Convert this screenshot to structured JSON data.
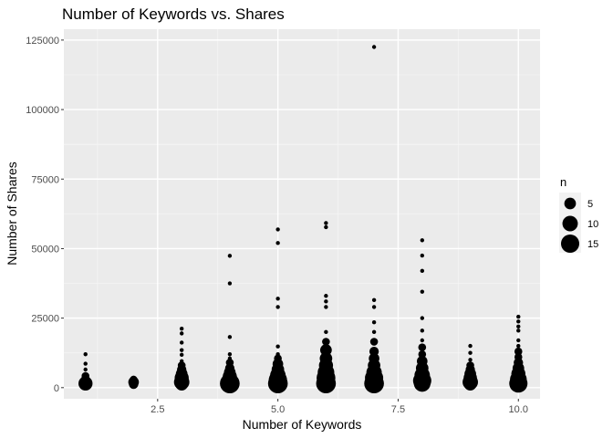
{
  "chart_data": {
    "type": "scatter",
    "title": "Number of Keywords vs. Shares",
    "xlabel": "Number of Keywords",
    "ylabel": "Number of Shares",
    "xlim": [
      0.55,
      10.45
    ],
    "ylim": [
      -4000,
      128900
    ],
    "x_ticks": [
      2.5,
      5.0,
      7.5,
      10.0
    ],
    "x_tick_labels": [
      "2.5",
      "5.0",
      "7.5",
      "10.0"
    ],
    "y_ticks": [
      0,
      25000,
      50000,
      75000,
      100000,
      125000
    ],
    "y_tick_labels": [
      "0",
      "25000",
      "50000",
      "75000",
      "100000",
      "125000"
    ],
    "grid": true,
    "background": "#ebebeb",
    "point_color": "#000000",
    "legend": {
      "title": "n",
      "position": "right",
      "entries": [
        {
          "label": "5",
          "n": 5
        },
        {
          "label": "10",
          "n": 10
        },
        {
          "label": "15",
          "n": 15
        }
      ]
    },
    "points": [
      {
        "x": 1,
        "y": 12000,
        "n": 1
      },
      {
        "x": 1,
        "y": 8600,
        "n": 1
      },
      {
        "x": 1,
        "y": 6500,
        "n": 1
      },
      {
        "x": 1,
        "y": 4200,
        "n": 2
      },
      {
        "x": 1,
        "y": 2800,
        "n": 3
      },
      {
        "x": 1,
        "y": 1500,
        "n": 8
      },
      {
        "x": 1,
        "y": 900,
        "n": 4
      },
      {
        "x": 2,
        "y": 2900,
        "n": 2
      },
      {
        "x": 2,
        "y": 2000,
        "n": 4
      },
      {
        "x": 2,
        "y": 1200,
        "n": 3
      },
      {
        "x": 2,
        "y": 600,
        "n": 1
      },
      {
        "x": 3,
        "y": 21200,
        "n": 1
      },
      {
        "x": 3,
        "y": 19500,
        "n": 1
      },
      {
        "x": 3,
        "y": 16200,
        "n": 1
      },
      {
        "x": 3,
        "y": 13500,
        "n": 1
      },
      {
        "x": 3,
        "y": 11800,
        "n": 1
      },
      {
        "x": 3,
        "y": 9500,
        "n": 1
      },
      {
        "x": 3,
        "y": 8000,
        "n": 2
      },
      {
        "x": 3,
        "y": 6500,
        "n": 3
      },
      {
        "x": 3,
        "y": 5000,
        "n": 5
      },
      {
        "x": 3,
        "y": 3500,
        "n": 8
      },
      {
        "x": 3,
        "y": 2000,
        "n": 10
      },
      {
        "x": 3,
        "y": 1200,
        "n": 6
      },
      {
        "x": 4,
        "y": 47400,
        "n": 1
      },
      {
        "x": 4,
        "y": 37500,
        "n": 1
      },
      {
        "x": 4,
        "y": 18200,
        "n": 1
      },
      {
        "x": 4,
        "y": 12000,
        "n": 1
      },
      {
        "x": 4,
        "y": 10500,
        "n": 1
      },
      {
        "x": 4,
        "y": 9000,
        "n": 2
      },
      {
        "x": 4,
        "y": 7000,
        "n": 3
      },
      {
        "x": 4,
        "y": 5500,
        "n": 5
      },
      {
        "x": 4,
        "y": 4000,
        "n": 8
      },
      {
        "x": 4,
        "y": 2500,
        "n": 12
      },
      {
        "x": 4,
        "y": 1500,
        "n": 18
      },
      {
        "x": 5,
        "y": 56900,
        "n": 1
      },
      {
        "x": 5,
        "y": 52000,
        "n": 1
      },
      {
        "x": 5,
        "y": 32000,
        "n": 1
      },
      {
        "x": 5,
        "y": 29000,
        "n": 1
      },
      {
        "x": 5,
        "y": 14800,
        "n": 1
      },
      {
        "x": 5,
        "y": 12000,
        "n": 1
      },
      {
        "x": 5,
        "y": 10500,
        "n": 2
      },
      {
        "x": 5,
        "y": 8500,
        "n": 4
      },
      {
        "x": 5,
        "y": 6500,
        "n": 6
      },
      {
        "x": 5,
        "y": 4500,
        "n": 10
      },
      {
        "x": 5,
        "y": 2800,
        "n": 15
      },
      {
        "x": 5,
        "y": 1500,
        "n": 18
      },
      {
        "x": 6,
        "y": 59200,
        "n": 1
      },
      {
        "x": 6,
        "y": 57700,
        "n": 1
      },
      {
        "x": 6,
        "y": 33000,
        "n": 1
      },
      {
        "x": 6,
        "y": 31000,
        "n": 1
      },
      {
        "x": 6,
        "y": 29000,
        "n": 1
      },
      {
        "x": 6,
        "y": 20000,
        "n": 1
      },
      {
        "x": 6,
        "y": 16500,
        "n": 2
      },
      {
        "x": 6,
        "y": 13500,
        "n": 5
      },
      {
        "x": 6,
        "y": 10500,
        "n": 6
      },
      {
        "x": 6,
        "y": 8000,
        "n": 8
      },
      {
        "x": 6,
        "y": 5500,
        "n": 12
      },
      {
        "x": 6,
        "y": 3500,
        "n": 16
      },
      {
        "x": 6,
        "y": 1500,
        "n": 18
      },
      {
        "x": 7,
        "y": 122500,
        "n": 1
      },
      {
        "x": 7,
        "y": 31500,
        "n": 1
      },
      {
        "x": 7,
        "y": 29000,
        "n": 1
      },
      {
        "x": 7,
        "y": 23500,
        "n": 1
      },
      {
        "x": 7,
        "y": 20000,
        "n": 1
      },
      {
        "x": 7,
        "y": 16500,
        "n": 2
      },
      {
        "x": 7,
        "y": 13000,
        "n": 3
      },
      {
        "x": 7,
        "y": 10500,
        "n": 4
      },
      {
        "x": 7,
        "y": 8000,
        "n": 6
      },
      {
        "x": 7,
        "y": 5500,
        "n": 10
      },
      {
        "x": 7,
        "y": 3500,
        "n": 15
      },
      {
        "x": 7,
        "y": 1500,
        "n": 18
      },
      {
        "x": 8,
        "y": 53000,
        "n": 1
      },
      {
        "x": 8,
        "y": 47500,
        "n": 1
      },
      {
        "x": 8,
        "y": 42000,
        "n": 1
      },
      {
        "x": 8,
        "y": 34500,
        "n": 1
      },
      {
        "x": 8,
        "y": 25000,
        "n": 1
      },
      {
        "x": 8,
        "y": 20500,
        "n": 1
      },
      {
        "x": 8,
        "y": 17000,
        "n": 1
      },
      {
        "x": 8,
        "y": 14500,
        "n": 2
      },
      {
        "x": 8,
        "y": 12000,
        "n": 2
      },
      {
        "x": 8,
        "y": 9500,
        "n": 4
      },
      {
        "x": 8,
        "y": 7000,
        "n": 6
      },
      {
        "x": 8,
        "y": 4500,
        "n": 10
      },
      {
        "x": 8,
        "y": 2500,
        "n": 15
      },
      {
        "x": 8,
        "y": 1500,
        "n": 12
      },
      {
        "x": 9,
        "y": 15000,
        "n": 1
      },
      {
        "x": 9,
        "y": 12500,
        "n": 1
      },
      {
        "x": 9,
        "y": 10000,
        "n": 1
      },
      {
        "x": 9,
        "y": 8000,
        "n": 2
      },
      {
        "x": 9,
        "y": 6500,
        "n": 3
      },
      {
        "x": 9,
        "y": 5000,
        "n": 5
      },
      {
        "x": 9,
        "y": 3500,
        "n": 7
      },
      {
        "x": 9,
        "y": 2000,
        "n": 10
      },
      {
        "x": 9,
        "y": 1200,
        "n": 6
      },
      {
        "x": 10,
        "y": 25500,
        "n": 1
      },
      {
        "x": 10,
        "y": 23800,
        "n": 1
      },
      {
        "x": 10,
        "y": 22000,
        "n": 1
      },
      {
        "x": 10,
        "y": 20500,
        "n": 1
      },
      {
        "x": 10,
        "y": 17000,
        "n": 1
      },
      {
        "x": 10,
        "y": 15000,
        "n": 1
      },
      {
        "x": 10,
        "y": 13000,
        "n": 2
      },
      {
        "x": 10,
        "y": 11000,
        "n": 2
      },
      {
        "x": 10,
        "y": 9000,
        "n": 3
      },
      {
        "x": 10,
        "y": 7000,
        "n": 5
      },
      {
        "x": 10,
        "y": 5000,
        "n": 8
      },
      {
        "x": 10,
        "y": 3000,
        "n": 12
      },
      {
        "x": 10,
        "y": 1500,
        "n": 15
      }
    ]
  }
}
